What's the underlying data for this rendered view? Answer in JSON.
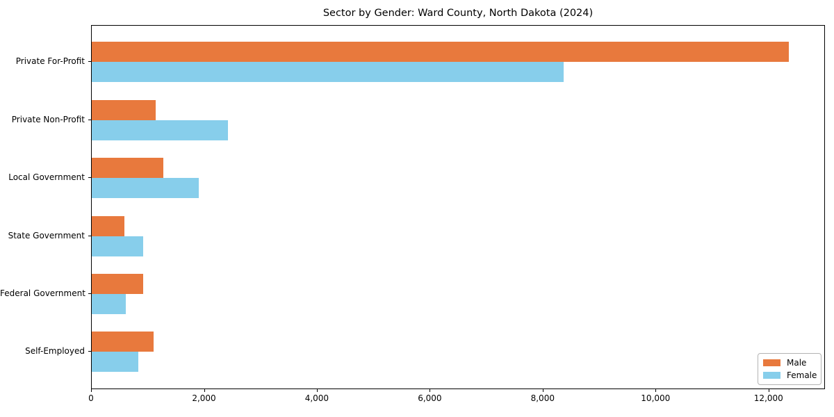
{
  "chart_data": {
    "type": "bar",
    "orientation": "horizontal",
    "title": "Sector by Gender: Ward County, North Dakota (2024)",
    "xlabel": "",
    "ylabel": "",
    "categories": [
      "Private For-Profit",
      "Private Non-Profit",
      "Local Government",
      "State Government",
      "Federal Government",
      "Self-Employed"
    ],
    "series": [
      {
        "name": "Male",
        "color": "#e8793d",
        "values": [
          12350,
          1130,
          1270,
          575,
          910,
          1090
        ]
      },
      {
        "name": "Female",
        "color": "#87ceeb",
        "values": [
          8360,
          2410,
          1890,
          910,
          600,
          820
        ]
      }
    ],
    "xlim": [
      0,
      13000
    ],
    "xticks": [
      0,
      2000,
      4000,
      6000,
      8000,
      10000,
      12000
    ],
    "xtick_labels": [
      "0",
      "2,000",
      "4,000",
      "6,000",
      "8,000",
      "10,000",
      "12,000"
    ],
    "grid": false,
    "legend_position": "lower right"
  },
  "colors": {
    "male": "#e8793d",
    "female": "#87ceeb",
    "spine": "#000000",
    "legend_border": "#b3b3b3",
    "background": "#ffffff"
  }
}
